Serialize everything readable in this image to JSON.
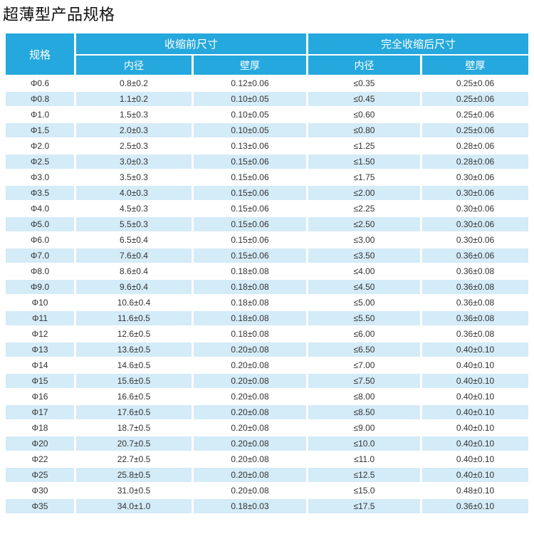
{
  "page": {
    "title": "超薄型产品规格"
  },
  "table": {
    "col_spec_label": "规格",
    "group_before_label": "收缩前尺寸",
    "group_after_label": "完全收缩后尺寸",
    "sub_headers": [
      "内径",
      "壁厚",
      "内径",
      "壁厚"
    ],
    "colors": {
      "header_bg": "#25A8DD",
      "header_text": "#FFFFFF",
      "row_alt_bg": "#D4EBF8",
      "row_bg": "#FFFFFF",
      "body_text": "#333333"
    },
    "rows": [
      [
        "Φ0.6",
        "0.8±0.2",
        "0.12±0.06",
        "≤0.35",
        "0.25±0.06"
      ],
      [
        "Φ0.8",
        "1.1±0.2",
        "0.10±0.05",
        "≤0.45",
        "0.25±0.06"
      ],
      [
        "Φ1.0",
        "1.5±0.3",
        "0.10±0.05",
        "≤0.60",
        "0.25±0.06"
      ],
      [
        "Φ1.5",
        "2.0±0.3",
        "0.10±0.05",
        "≤0.80",
        "0.25±0.06"
      ],
      [
        "Φ2.0",
        "2.5±0.3",
        "0.13±0.06",
        "≤1.25",
        "0.28±0.06"
      ],
      [
        "Φ2.5",
        "3.0±0.3",
        "0.15±0.06",
        "≤1.50",
        "0.28±0.06"
      ],
      [
        "Φ3.0",
        "3.5±0.3",
        "0.15±0.06",
        "≤1.75",
        "0.30±0.06"
      ],
      [
        "Φ3.5",
        "4.0±0.3",
        "0.15±0.06",
        "≤2.00",
        "0.30±0.06"
      ],
      [
        "Φ4.0",
        "4.5±0.3",
        "0.15±0.06",
        "≤2.25",
        "0.30±0.06"
      ],
      [
        "Φ5.0",
        "5.5±0.3",
        "0.15±0.06",
        "≤2.50",
        "0.30±0.06"
      ],
      [
        "Φ6.0",
        "6.5±0.4",
        "0.15±0.06",
        "≤3.00",
        "0.30±0.06"
      ],
      [
        "Φ7.0",
        "7.6±0.4",
        "0.15±0.06",
        "≤3.50",
        "0.36±0.06"
      ],
      [
        "Φ8.0",
        "8.6±0.4",
        "0.18±0.08",
        "≤4.00",
        "0.36±0.08"
      ],
      [
        "Φ9.0",
        "9.6±0.4",
        "0.18±0.08",
        "≤4.50",
        "0.36±0.08"
      ],
      [
        "Φ10",
        "10.6±0.4",
        "0.18±0.08",
        "≤5.00",
        "0.36±0.08"
      ],
      [
        "Φ11",
        "11.6±0.5",
        "0.18±0.08",
        "≤5.50",
        "0.36±0.08"
      ],
      [
        "Φ12",
        "12.6±0.5",
        "0.18±0.08",
        "≤6.00",
        "0.36±0.08"
      ],
      [
        "Φ13",
        "13.6±0.5",
        "0.20±0.08",
        "≤6.50",
        "0.40±0.10"
      ],
      [
        "Φ14",
        "14.6±0.5",
        "0.20±0.08",
        "≤7.00",
        "0.40±0.10"
      ],
      [
        "Φ15",
        "15.6±0.5",
        "0.20±0.08",
        "≤7.50",
        "0.40±0.10"
      ],
      [
        "Φ16",
        "16.6±0.5",
        "0.20±0.08",
        "≤8.00",
        "0.40±0.10"
      ],
      [
        "Φ17",
        "17.6±0.5",
        "0.20±0.08",
        "≤8.50",
        "0.40±0.10"
      ],
      [
        "Φ18",
        "18.7±0.5",
        "0.20±0.08",
        "≤9.00",
        "0.40±0.10"
      ],
      [
        "Φ20",
        "20.7±0.5",
        "0.20±0.08",
        "≤10.0",
        "0.40±0.10"
      ],
      [
        "Φ22",
        "22.7±0.5",
        "0.20±0.08",
        "≤11.0",
        "0.40±0.10"
      ],
      [
        "Φ25",
        "25.8±0.5",
        "0.20±0.08",
        "≤12.5",
        "0.40±0.10"
      ],
      [
        "Φ30",
        "31.0±0.5",
        "0.20±0.08",
        "≤15.0",
        "0.48±0.10"
      ],
      [
        "Φ35",
        "34.0±1.0",
        "0.18±0.03",
        "≤17.5",
        "0.36±0.10"
      ]
    ]
  }
}
